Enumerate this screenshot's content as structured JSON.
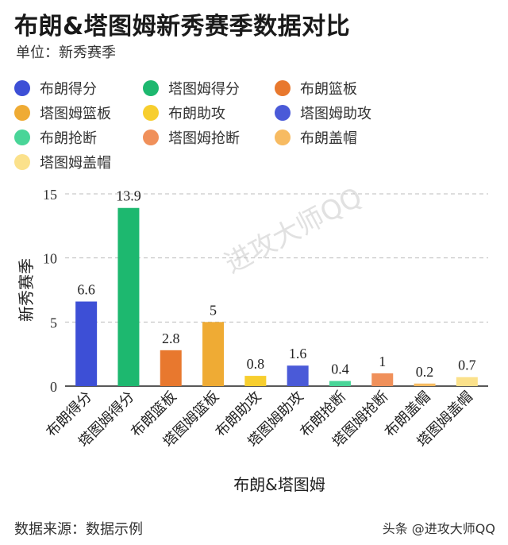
{
  "title": "布朗&塔图姆新秀赛季数据对比",
  "subtitle": "单位：新秀赛季",
  "footer": {
    "source": "数据来源：数据示例",
    "credit": "头条 @进攻大师QQ"
  },
  "watermark": "进攻大师QQ",
  "legend": [
    {
      "label": "布朗得分",
      "color": "#3d4fd6"
    },
    {
      "label": "塔图姆得分",
      "color": "#1db86f"
    },
    {
      "label": "布朗篮板",
      "color": "#e8782e"
    },
    {
      "label": "塔图姆篮板",
      "color": "#efab34"
    },
    {
      "label": "布朗助攻",
      "color": "#f7ce2e"
    },
    {
      "label": "塔图姆助攻",
      "color": "#4a5ad8"
    },
    {
      "label": "布朗抢断",
      "color": "#49d598"
    },
    {
      "label": "塔图姆抢断",
      "color": "#f0905a"
    },
    {
      "label": "布朗盖帽",
      "color": "#f7bb62"
    },
    {
      "label": "塔图姆盖帽",
      "color": "#fbe18b"
    }
  ],
  "chart_data": {
    "type": "bar",
    "categories": [
      "布朗得分",
      "塔图姆得分",
      "布朗篮板",
      "塔图姆篮板",
      "布朗助攻",
      "塔图姆助攻",
      "布朗抢断",
      "塔图姆抢断",
      "布朗盖帽",
      "塔图姆盖帽"
    ],
    "values": [
      6.6,
      13.9,
      2.8,
      5,
      0.8,
      1.6,
      0.4,
      1,
      0.2,
      0.7
    ],
    "labels": [
      "6.6",
      "13.9",
      "2.8",
      "5",
      "0.8",
      "1.6",
      "0.4",
      "1",
      "0.2",
      "0.7"
    ],
    "colors": [
      "#3d4fd6",
      "#1db86f",
      "#e8782e",
      "#efab34",
      "#f7ce2e",
      "#4a5ad8",
      "#49d598",
      "#f0905a",
      "#f7bb62",
      "#fbe18b"
    ],
    "title": "布朗&塔图姆新秀赛季数据对比",
    "xlabel": "布朗&塔图姆",
    "ylabel": "新秀赛季",
    "ylim": [
      0,
      15
    ],
    "yticks": [
      "0",
      "5",
      "10",
      "15"
    ],
    "grid": true
  }
}
